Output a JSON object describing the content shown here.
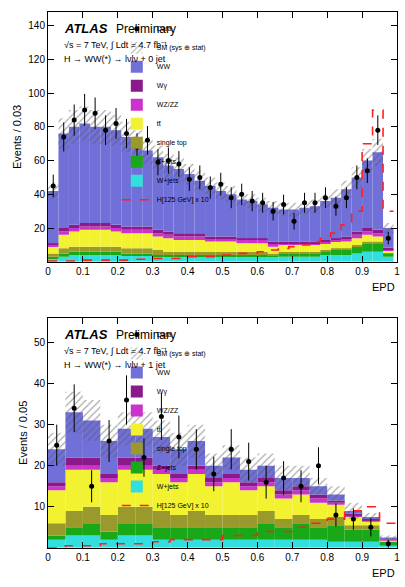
{
  "chart_data": [
    {
      "type": "histogram",
      "stacked": true,
      "grid": false,
      "legend": "top right",
      "annotations": [
        "ATLAS",
        "Preliminary",
        "√s = 7 TeV, ∫ Ldt = 4.7 fb⁻¹",
        "H → WW(*) → lνlν + 0 jet"
      ],
      "x_label": "EPD",
      "y_label": "Events / 0.03",
      "xlim": [
        0,
        1
      ],
      "xticks": [
        0,
        0.1,
        0.2,
        0.3,
        0.4,
        0.5,
        0.6,
        0.7,
        0.8,
        0.9,
        1
      ],
      "ylim": [
        0,
        148
      ],
      "yticks": [
        20,
        40,
        60,
        80,
        100,
        120,
        140
      ],
      "bins": [
        0,
        0.03,
        0.06,
        0.09,
        0.12,
        0.15,
        0.18,
        0.21,
        0.24,
        0.27,
        0.3,
        0.33,
        0.36,
        0.39,
        0.42,
        0.45,
        0.48,
        0.51,
        0.54,
        0.57,
        0.6,
        0.63,
        0.66,
        0.69,
        0.72,
        0.75,
        0.78,
        0.81,
        0.84,
        0.87,
        0.9,
        0.93,
        0.96,
        0.99
      ],
      "series": [
        {
          "name": "Data",
          "type": "scatter",
          "marker": "circle",
          "color": "#000000",
          "values": [
            45,
            74,
            84,
            90,
            88,
            78,
            82,
            76,
            68,
            72,
            59,
            60,
            58,
            49,
            50,
            44,
            46,
            38,
            40,
            36,
            35,
            30,
            34,
            24,
            35,
            35,
            38,
            33,
            38,
            50,
            54,
            78,
            14
          ],
          "errors": [
            6.7,
            8.6,
            9.2,
            9.5,
            9.4,
            8.8,
            9.1,
            8.7,
            8.2,
            8.5,
            7.7,
            7.7,
            7.6,
            7,
            7.1,
            6.6,
            6.8,
            6.2,
            6.3,
            6,
            5.9,
            5.5,
            5.8,
            4.9,
            5.9,
            5.9,
            6.2,
            5.7,
            6.2,
            7.1,
            7.3,
            8.8,
            3.7
          ]
        },
        {
          "name": "SM (sys ⊕ stat)",
          "type": "band",
          "color": "#555555",
          "values": [
            5,
            9,
            10,
            10,
            10,
            10,
            9,
            9,
            8,
            8,
            7,
            7,
            7,
            6,
            6,
            5,
            5,
            5,
            4,
            4,
            4,
            4,
            4,
            4,
            4,
            4,
            4,
            5,
            5,
            6,
            7,
            8,
            3
          ]
        },
        {
          "name": "WW",
          "type": "bar",
          "color": "#7070d8",
          "values": [
            31,
            56,
            58,
            59,
            57,
            57,
            56,
            53,
            49,
            45,
            43,
            39,
            38,
            35,
            31,
            30,
            27,
            25,
            23,
            22,
            20,
            20,
            19,
            19,
            20,
            21,
            23,
            24,
            28,
            32,
            40,
            46,
            11.5
          ]
        },
        {
          "name": "Wγ",
          "type": "bar",
          "color": "#8a1a8a",
          "values": [
            1,
            2,
            2,
            2,
            2,
            2,
            2,
            2,
            2,
            2,
            2,
            2,
            2,
            2,
            2,
            1,
            1,
            1,
            1,
            1,
            1,
            1,
            1,
            1,
            1,
            1,
            1,
            1,
            1,
            2,
            2,
            2,
            1
          ]
        },
        {
          "name": "WZ/ZZ",
          "type": "bar",
          "color": "#cc33cc",
          "values": [
            1,
            2,
            2,
            2,
            2,
            2,
            2,
            2,
            2,
            2,
            2,
            2,
            2,
            2,
            2,
            2,
            2,
            2,
            2,
            2,
            2,
            2,
            1,
            1,
            1,
            1,
            1,
            1,
            2,
            2,
            2,
            2,
            1
          ]
        },
        {
          "name": "tt̄",
          "type": "bar",
          "color": "#f2f230",
          "values": [
            4,
            8,
            9,
            10,
            10,
            10,
            9,
            9,
            9,
            9,
            8,
            8,
            7,
            7,
            7,
            6,
            6,
            6,
            5,
            5,
            5,
            4,
            4,
            4,
            4,
            4,
            4,
            4,
            4,
            4,
            4,
            3,
            1
          ]
        },
        {
          "name": "single top",
          "type": "bar",
          "color": "#9a9a2c",
          "values": [
            2,
            3,
            3,
            3,
            3,
            3,
            3,
            3,
            3,
            3,
            3,
            2,
            2,
            2,
            2,
            2,
            2,
            2,
            2,
            2,
            2,
            1,
            1,
            1,
            1,
            1,
            1,
            1,
            1,
            1,
            1,
            1,
            0.5
          ]
        },
        {
          "name": "Z+jets",
          "type": "bar",
          "color": "#18a818",
          "values": [
            1,
            2,
            2,
            2,
            2,
            2,
            2,
            1,
            1,
            1,
            1,
            1,
            1,
            1,
            1,
            1,
            1,
            1,
            1,
            1,
            1,
            1,
            2,
            2,
            2,
            2,
            2,
            3,
            3,
            4,
            5,
            5,
            2
          ]
        },
        {
          "name": "W+jets",
          "type": "bar",
          "color": "#33dede",
          "values": [
            2,
            3,
            4,
            4,
            4,
            4,
            4,
            4,
            4,
            4,
            3,
            3,
            3,
            3,
            3,
            3,
            3,
            3,
            3,
            3,
            3,
            3,
            3,
            3,
            3,
            3,
            4,
            4,
            4,
            5,
            6,
            6,
            3
          ]
        },
        {
          "name": "H[125 GeV] x 10",
          "type": "step",
          "line_style": "dashed",
          "color": "#ff2020",
          "values": [
            0.5,
            0.5,
            0.5,
            1,
            1,
            1,
            1,
            1,
            1.5,
            1.5,
            2,
            2,
            2,
            3,
            3,
            3,
            4,
            4,
            5,
            5,
            6,
            7,
            8,
            9,
            10,
            12,
            14,
            17,
            22,
            30,
            70,
            90,
            30
          ]
        }
      ]
    },
    {
      "type": "histogram",
      "stacked": true,
      "grid": false,
      "legend": "top right",
      "annotations": [
        "ATLAS",
        "Preliminary",
        "√s = 7 TeV, ∫ Ldt = 4.7 fb⁻¹",
        "H → WW(*) → lνlν + 1 jet"
      ],
      "x_label": "EPD",
      "y_label": "Events / 0.05",
      "xlim": [
        0,
        1
      ],
      "xticks": [
        0,
        0.1,
        0.2,
        0.3,
        0.4,
        0.5,
        0.6,
        0.7,
        0.8,
        0.9,
        1
      ],
      "ylim": [
        0,
        56
      ],
      "yticks": [
        10,
        20,
        30,
        40,
        50
      ],
      "bins": [
        0,
        0.05,
        0.1,
        0.15,
        0.2,
        0.25,
        0.3,
        0.35,
        0.4,
        0.45,
        0.5,
        0.55,
        0.6,
        0.65,
        0.7,
        0.75,
        0.8,
        0.85,
        0.9,
        0.95,
        1
      ],
      "series": [
        {
          "name": "Data",
          "type": "scatter",
          "marker": "circle",
          "color": "#000000",
          "values": [
            25,
            34,
            15,
            26,
            36,
            22,
            32,
            27,
            24,
            18,
            24,
            21,
            16,
            17,
            15,
            20,
            8,
            7,
            5,
            1
          ],
          "errors": [
            5,
            5.8,
            3.9,
            5.1,
            6,
            4.7,
            5.7,
            5.2,
            4.9,
            4.2,
            4.9,
            4.6,
            4,
            4.1,
            3.9,
            4.5,
            2.8,
            2.6,
            2.2,
            1
          ]
        },
        {
          "name": "SM (sys ⊕ stat)",
          "type": "band",
          "color": "#555555",
          "values": [
            4,
            5,
            5,
            4,
            4,
            4,
            4,
            4,
            4,
            3,
            3,
            3,
            3,
            3,
            3,
            2,
            2,
            2,
            1,
            0.5
          ]
        },
        {
          "name": "WW",
          "type": "bar",
          "color": "#7070d8",
          "values": [
            8,
            11,
            9,
            8,
            7,
            7,
            7,
            6,
            6,
            3,
            4,
            3,
            3,
            3,
            2,
            2,
            1.5,
            0.7,
            0.5,
            0.5
          ]
        },
        {
          "name": "Wγ",
          "type": "bar",
          "color": "#8a1a8a",
          "values": [
            1,
            2,
            2,
            1,
            2,
            2,
            1,
            1,
            1,
            1,
            1,
            1,
            1,
            1,
            1,
            1,
            0.5,
            0.3,
            0.2,
            0
          ]
        },
        {
          "name": "WZ/ZZ",
          "type": "bar",
          "color": "#cc33cc",
          "values": [
            1,
            1,
            1,
            1,
            1,
            1,
            1,
            1,
            1,
            1,
            1,
            1,
            1,
            1,
            1,
            1,
            0.5,
            0.5,
            0.3,
            0.1
          ]
        },
        {
          "name": "tt̄",
          "type": "bar",
          "color": "#f2f230",
          "values": [
            8,
            10,
            9,
            8,
            9,
            9,
            9,
            8,
            9,
            7,
            8,
            6,
            6,
            5,
            5,
            4,
            3,
            2,
            1,
            0.2
          ]
        },
        {
          "name": "single top",
          "type": "bar",
          "color": "#9a9a2c",
          "values": [
            3,
            4,
            4,
            4,
            4,
            4,
            4,
            3,
            4,
            3,
            3,
            3,
            3,
            2,
            2,
            2,
            2,
            1,
            1,
            0.2
          ]
        },
        {
          "name": "Z+jets",
          "type": "bar",
          "color": "#18a818",
          "values": [
            1,
            2,
            3,
            2,
            3,
            3,
            3,
            3,
            3,
            3,
            3,
            3,
            4,
            3,
            4,
            3,
            4,
            3,
            3,
            1
          ]
        },
        {
          "name": "W+jets",
          "type": "bar",
          "color": "#33dede",
          "values": [
            2,
            3,
            3,
            2,
            3,
            3,
            2,
            2,
            2,
            2,
            2,
            2,
            2,
            2,
            2,
            2,
            1.5,
            1.5,
            1.5,
            0.5
          ]
        },
        {
          "name": "H[125 GeV] x 10",
          "type": "step",
          "line_style": "dashed",
          "color": "#ff2020",
          "values": [
            0,
            0.5,
            0.5,
            1,
            1,
            1,
            1.5,
            2,
            2,
            2,
            3,
            3,
            4,
            4,
            5,
            6,
            7,
            9,
            10,
            6
          ]
        }
      ]
    }
  ]
}
